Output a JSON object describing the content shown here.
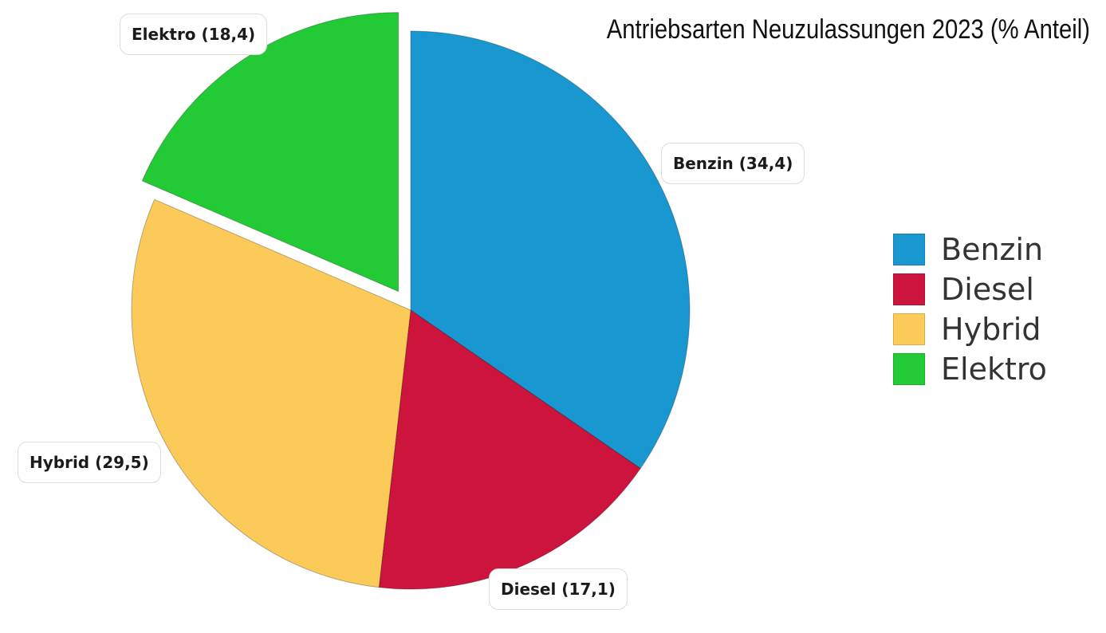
{
  "chart_data": {
    "type": "pie",
    "title": "Antriebsarten Neuzulassungen 2023 (% Anteil)",
    "slices": [
      {
        "name": "Benzin",
        "value": 34.4,
        "label": "Benzin (34,4)",
        "color": "#1897d1",
        "exploded": false
      },
      {
        "name": "Diesel",
        "value": 17.1,
        "label": "Diesel (17,1)",
        "color": "#cc143c",
        "exploded": false
      },
      {
        "name": "Hybrid",
        "value": 29.5,
        "label": "Hybrid (29,5)",
        "color": "#fcca58",
        "exploded": false
      },
      {
        "name": "Elektro",
        "value": 18.4,
        "label": "Elektro (18,4)",
        "color": "#22cb35",
        "exploded": true
      }
    ],
    "legend": {
      "placement": "right",
      "entries": [
        "Benzin",
        "Diesel",
        "Hybrid",
        "Elektro"
      ]
    }
  }
}
